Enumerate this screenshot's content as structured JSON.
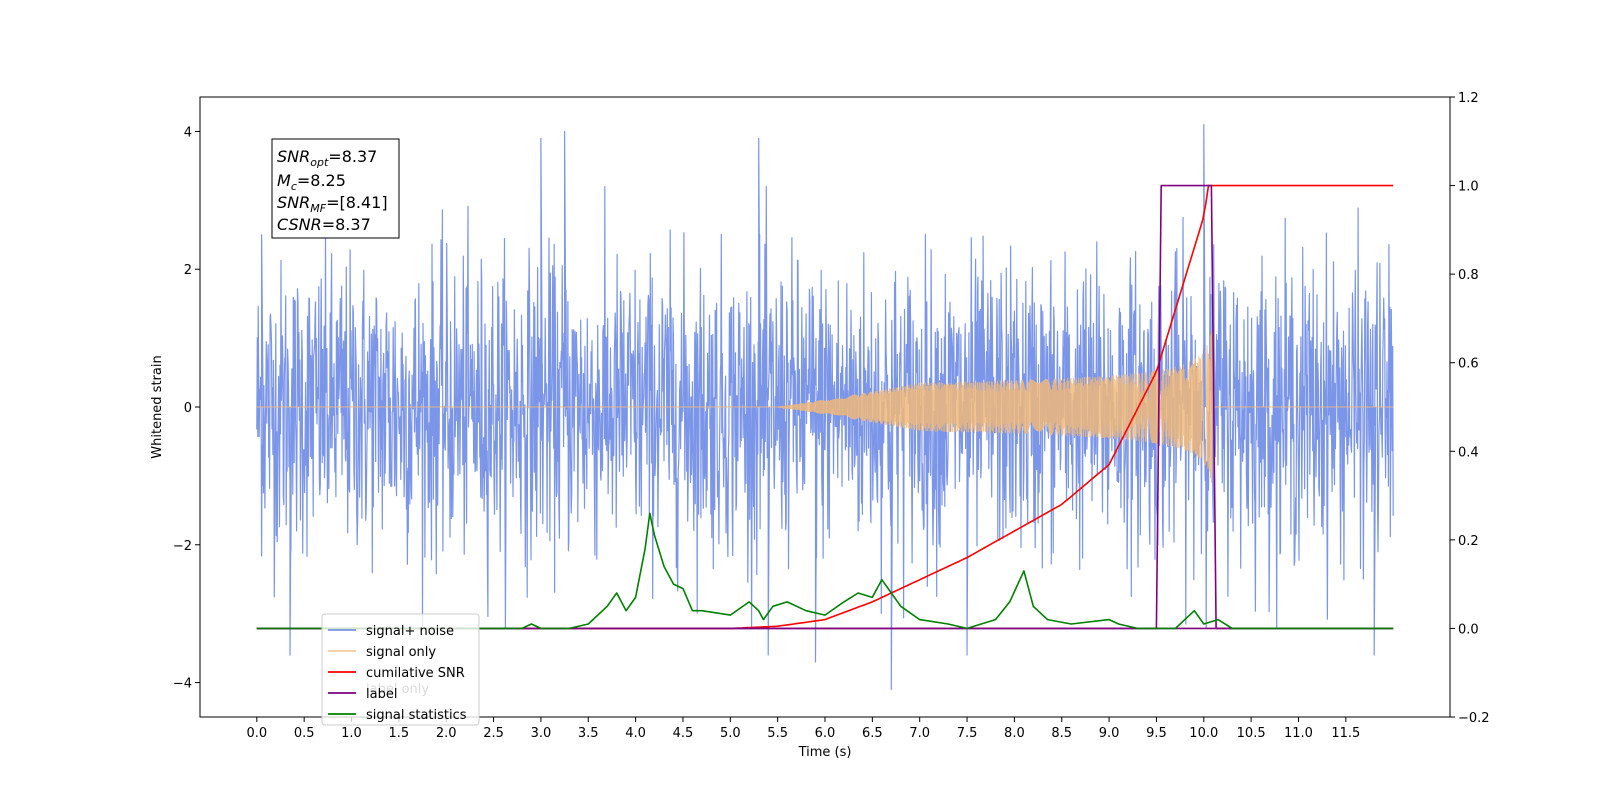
{
  "chart_data": {
    "type": "line",
    "title": "",
    "xlabel": "Time (s)",
    "ylabel": "Whitened strain",
    "xlim": [
      -0.6,
      12.6
    ],
    "ylim": [
      -4.5,
      4.5
    ],
    "y2lim": [
      -0.2,
      1.2
    ],
    "x_ticks": [
      "0.0",
      "0.5",
      "1.0",
      "1.5",
      "2.0",
      "2.5",
      "3.0",
      "3.5",
      "4.0",
      "4.5",
      "5.0",
      "5.5",
      "6.0",
      "6.5",
      "7.0",
      "7.5",
      "8.0",
      "8.5",
      "9.0",
      "9.5",
      "10.0",
      "10.5",
      "11.0",
      "11.5"
    ],
    "y_ticks": [
      "4",
      "2",
      "0",
      "−2",
      "−4"
    ],
    "y2_ticks": [
      "1.2",
      "1.0",
      "0.8",
      "0.6",
      "0.4",
      "0.2",
      "0.0",
      "−0.2"
    ],
    "grid": false,
    "legend_position": "lower-left",
    "info_box": {
      "snr_opt": "=8.37",
      "mc": "=8.25",
      "snr_mf": "=[8.41]",
      "csnr": "=8.37"
    },
    "series": [
      {
        "name": "signal+ noise",
        "axis": "left",
        "color": "#7b96e8",
        "x_range": [
          0.0,
          12.0
        ],
        "envelope_typical": [
          -1.8,
          1.8
        ],
        "peaks": [
          [
            0.05,
            2.5
          ],
          [
            0.35,
            -3.6
          ],
          [
            3.0,
            3.9
          ],
          [
            3.25,
            4.0
          ],
          [
            5.3,
            3.9
          ],
          [
            5.4,
            -3.6
          ],
          [
            5.9,
            -3.7
          ],
          [
            6.7,
            -4.1
          ],
          [
            7.5,
            -3.6
          ],
          [
            10.0,
            4.1
          ],
          [
            11.8,
            -3.6
          ]
        ]
      },
      {
        "name": "signal only",
        "axis": "left",
        "color": "#f0b87a",
        "x_range": [
          0.0,
          12.0
        ],
        "chirp_start": 5.5,
        "merger": 10.05,
        "peak_amplitude": 0.95
      },
      {
        "name": "cumilative SNR",
        "axis": "right",
        "color": "#ff0000",
        "x": [
          0.0,
          5.0,
          5.5,
          6.0,
          6.5,
          7.0,
          7.5,
          8.0,
          8.5,
          9.0,
          9.5,
          10.0,
          10.05,
          10.1,
          12.0
        ],
        "values": [
          0.0,
          0.0,
          0.005,
          0.02,
          0.06,
          0.11,
          0.16,
          0.22,
          0.28,
          0.37,
          0.58,
          0.93,
          1.0,
          1.0,
          1.0
        ]
      },
      {
        "name": "label",
        "axis": "right",
        "color": "#800080",
        "x": [
          0.0,
          9.5,
          9.55,
          10.08,
          10.13,
          12.0
        ],
        "values": [
          0.0,
          0.0,
          1.0,
          1.0,
          0.0,
          0.0
        ]
      },
      {
        "name": "label only",
        "axis": "right",
        "color": "#800080",
        "x": [
          0.0,
          12.0
        ],
        "values": [
          0.0,
          0.0
        ]
      },
      {
        "name": "signal statistics",
        "axis": "right",
        "color": "#008000",
        "x": [
          0.0,
          2.8,
          2.9,
          3.0,
          3.3,
          3.5,
          3.7,
          3.8,
          3.9,
          4.0,
          4.1,
          4.15,
          4.2,
          4.3,
          4.4,
          4.5,
          4.6,
          4.7,
          5.0,
          5.2,
          5.3,
          5.35,
          5.45,
          5.6,
          5.8,
          6.0,
          6.2,
          6.35,
          6.5,
          6.6,
          6.8,
          7.0,
          7.3,
          7.5,
          7.8,
          7.95,
          8.1,
          8.2,
          8.35,
          8.6,
          9.0,
          9.1,
          9.3,
          9.7,
          9.9,
          10.0,
          10.15,
          10.3,
          12.0
        ],
        "values": [
          0.0,
          0.0,
          0.01,
          0.0,
          0.0,
          0.01,
          0.05,
          0.08,
          0.04,
          0.07,
          0.18,
          0.26,
          0.21,
          0.14,
          0.1,
          0.09,
          0.04,
          0.04,
          0.03,
          0.06,
          0.04,
          0.02,
          0.05,
          0.06,
          0.04,
          0.03,
          0.06,
          0.08,
          0.07,
          0.11,
          0.05,
          0.02,
          0.01,
          0.0,
          0.02,
          0.06,
          0.13,
          0.05,
          0.02,
          0.01,
          0.02,
          0.01,
          0.0,
          0.0,
          0.04,
          0.01,
          0.02,
          0.0,
          0.0
        ]
      }
    ]
  }
}
